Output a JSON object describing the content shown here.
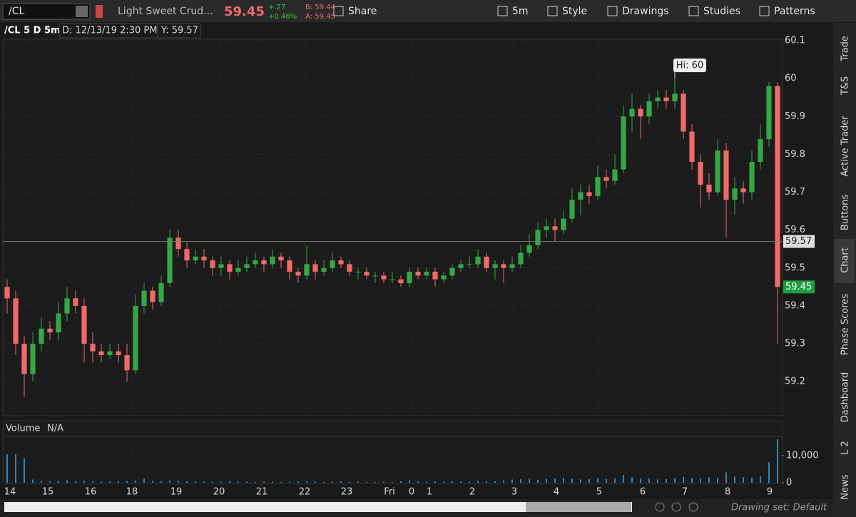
{
  "toolbar": {
    "symbol": "/CL",
    "description": "Light Sweet Crud...",
    "price": "59.45",
    "change": "+.27",
    "change_pct": "+0.46%",
    "bid": "B: 59.44",
    "ask": "A: 59.45",
    "buttons": [
      "Share",
      "5m",
      "Style",
      "Drawings",
      "Studies",
      "Patterns"
    ]
  },
  "header": {
    "symbol": "/CL 5 D 5m",
    "date": "D: 12/13/19 2:30 PM",
    "y": "Y: 59.57"
  },
  "sidebar_tabs": [
    "Trade",
    "T&S",
    "Active Trader",
    "Buttons",
    "Chart",
    "Phase Scores",
    "Dashboard",
    "L 2",
    "News"
  ],
  "footer": {
    "drawing_set": "Drawing set: Default"
  },
  "chart_data": {
    "type": "candlestick",
    "annotation": "Hi: 60",
    "crosshair_y": 59.57,
    "last_price": 59.45,
    "ylim": [
      59.11,
      60.1
    ],
    "yticks": [
      59.2,
      59.3,
      59.4,
      59.5,
      59.6,
      59.7,
      59.8,
      59.9,
      60,
      60.1
    ],
    "xlim": [
      -0.5,
      90.5
    ],
    "xticks": [
      {
        "value": 0.33,
        "label": "14"
      },
      {
        "value": 4.75,
        "label": "15"
      },
      {
        "value": 9.75,
        "label": "16"
      },
      {
        "value": 14.58,
        "label": "18"
      },
      {
        "value": 19.75,
        "label": "19"
      },
      {
        "value": 24.75,
        "label": "20"
      },
      {
        "value": 29.75,
        "label": "21"
      },
      {
        "value": 34.75,
        "label": "22"
      },
      {
        "value": 39.67,
        "label": "23"
      },
      {
        "value": 44.67,
        "label": "Fri"
      },
      {
        "value": 47.25,
        "label": "0"
      },
      {
        "value": 49.33,
        "label": "1"
      },
      {
        "value": 54.33,
        "label": "2"
      },
      {
        "value": 59.25,
        "label": "3"
      },
      {
        "value": 64.17,
        "label": "4"
      },
      {
        "value": 69.17,
        "label": "5"
      },
      {
        "value": 74.25,
        "label": "6"
      },
      {
        "value": 79.17,
        "label": "7"
      },
      {
        "value": 84.17,
        "label": "8"
      },
      {
        "value": 89.08,
        "label": "9"
      }
    ],
    "grid": true,
    "up_color": "#35a845",
    "down_color": "#f06a6a",
    "series": [
      {
        "name": "/CL",
        "values": [
          [
            59.45,
            59.47,
            59.38,
            59.42
          ],
          [
            59.42,
            59.44,
            59.27,
            59.3
          ],
          [
            59.3,
            59.32,
            59.16,
            59.22
          ],
          [
            59.22,
            59.33,
            59.2,
            59.3
          ],
          [
            59.3,
            59.37,
            59.28,
            59.34
          ],
          [
            59.34,
            59.36,
            59.31,
            59.33
          ],
          [
            59.33,
            59.41,
            59.31,
            59.38
          ],
          [
            59.38,
            59.45,
            59.36,
            59.42
          ],
          [
            59.42,
            59.44,
            59.38,
            59.4
          ],
          [
            59.4,
            59.42,
            59.25,
            59.3
          ],
          [
            59.3,
            59.33,
            59.25,
            59.28
          ],
          [
            59.28,
            59.3,
            59.25,
            59.27
          ],
          [
            59.27,
            59.3,
            59.26,
            59.28
          ],
          [
            59.28,
            59.3,
            59.25,
            59.27
          ],
          [
            59.27,
            59.3,
            59.2,
            59.23
          ],
          [
            59.23,
            59.43,
            59.22,
            59.4
          ],
          [
            59.4,
            59.46,
            59.38,
            59.44
          ],
          [
            59.44,
            59.45,
            59.39,
            59.41
          ],
          [
            59.41,
            59.48,
            59.4,
            59.46
          ],
          [
            59.46,
            59.6,
            59.45,
            59.58
          ],
          [
            59.58,
            59.6,
            59.53,
            59.55
          ],
          [
            59.55,
            59.57,
            59.5,
            59.52
          ],
          [
            59.52,
            59.55,
            59.51,
            59.53
          ],
          [
            59.53,
            59.55,
            59.5,
            59.52
          ],
          [
            59.52,
            59.53,
            59.48,
            59.5
          ],
          [
            59.5,
            59.53,
            59.48,
            59.51
          ],
          [
            59.51,
            59.52,
            59.47,
            59.49
          ],
          [
            59.49,
            59.52,
            59.48,
            59.5
          ],
          [
            59.5,
            59.53,
            59.49,
            59.51
          ],
          [
            59.51,
            59.54,
            59.5,
            59.52
          ],
          [
            59.52,
            59.53,
            59.49,
            59.51
          ],
          [
            59.51,
            59.55,
            59.5,
            59.53
          ],
          [
            59.53,
            59.54,
            59.5,
            59.52
          ],
          [
            59.52,
            59.53,
            59.47,
            59.49
          ],
          [
            59.49,
            59.5,
            59.46,
            59.48
          ],
          [
            59.48,
            59.56,
            59.47,
            59.51
          ],
          [
            59.51,
            59.52,
            59.47,
            59.49
          ],
          [
            59.49,
            59.52,
            59.48,
            59.5
          ],
          [
            59.5,
            59.54,
            59.49,
            59.52
          ],
          [
            59.52,
            59.53,
            59.5,
            59.51
          ],
          [
            59.51,
            59.52,
            59.48,
            59.49
          ],
          [
            59.49,
            59.5,
            59.47,
            59.49
          ],
          [
            59.49,
            59.5,
            59.47,
            59.48
          ],
          [
            59.48,
            59.49,
            59.46,
            59.48
          ],
          [
            59.48,
            59.49,
            59.46,
            59.47
          ],
          [
            59.47,
            59.49,
            59.46,
            59.47
          ],
          [
            59.47,
            59.48,
            59.45,
            59.46
          ],
          [
            59.46,
            59.5,
            59.45,
            59.49
          ],
          [
            59.49,
            59.5,
            59.47,
            59.48
          ],
          [
            59.48,
            59.5,
            59.47,
            59.49
          ],
          [
            59.49,
            59.5,
            59.45,
            59.47
          ],
          [
            59.47,
            59.49,
            59.46,
            59.48
          ],
          [
            59.48,
            59.51,
            59.47,
            59.5
          ],
          [
            59.5,
            59.52,
            59.49,
            59.51
          ],
          [
            59.51,
            59.53,
            59.5,
            59.51
          ],
          [
            59.51,
            59.55,
            59.5,
            59.53
          ],
          [
            59.53,
            59.54,
            59.49,
            59.5
          ],
          [
            59.5,
            59.52,
            59.47,
            59.51
          ],
          [
            59.51,
            59.52,
            59.46,
            59.5
          ],
          [
            59.5,
            59.53,
            59.49,
            59.51
          ],
          [
            59.51,
            59.56,
            59.5,
            59.54
          ],
          [
            59.54,
            59.59,
            59.53,
            59.56
          ],
          [
            59.56,
            59.62,
            59.55,
            59.6
          ],
          [
            59.6,
            59.63,
            59.58,
            59.61
          ],
          [
            59.61,
            59.63,
            59.57,
            59.6
          ],
          [
            59.6,
            59.65,
            59.59,
            59.63
          ],
          [
            59.63,
            59.71,
            59.62,
            59.68
          ],
          [
            59.68,
            59.72,
            59.64,
            59.7
          ],
          [
            59.7,
            59.72,
            59.67,
            59.69
          ],
          [
            59.69,
            59.77,
            59.68,
            59.74
          ],
          [
            59.74,
            59.76,
            59.71,
            59.73
          ],
          [
            59.73,
            59.8,
            59.72,
            59.76
          ],
          [
            59.76,
            59.93,
            59.75,
            59.9
          ],
          [
            59.9,
            59.96,
            59.86,
            59.92
          ],
          [
            59.92,
            59.93,
            59.84,
            59.9
          ],
          [
            59.9,
            59.96,
            59.88,
            59.94
          ],
          [
            59.94,
            59.97,
            59.92,
            59.95
          ],
          [
            59.95,
            59.97,
            59.92,
            59.94
          ],
          [
            59.94,
            60.0,
            59.92,
            59.96
          ],
          [
            59.96,
            59.97,
            59.84,
            59.86
          ],
          [
            59.86,
            59.88,
            59.76,
            59.78
          ],
          [
            59.78,
            59.8,
            59.66,
            59.72
          ],
          [
            59.72,
            59.75,
            59.68,
            59.7
          ],
          [
            59.7,
            59.84,
            59.69,
            59.81
          ],
          [
            59.81,
            59.83,
            59.58,
            59.68
          ],
          [
            59.68,
            59.74,
            59.64,
            59.71
          ],
          [
            59.71,
            59.73,
            59.67,
            59.7
          ],
          [
            59.7,
            59.81,
            59.68,
            59.78
          ],
          [
            59.78,
            59.88,
            59.76,
            59.84
          ],
          [
            59.84,
            59.99,
            59.82,
            59.98
          ],
          [
            59.98,
            59.99,
            59.3,
            59.45
          ]
        ]
      }
    ],
    "volume": {
      "title": "Volume",
      "subtitle": "N/A",
      "color": "#2f86c4",
      "ylim": [
        0,
        16500
      ],
      "yticks": [
        0,
        {
          "value": 10000,
          "label": "10,000"
        }
      ],
      "values": [
        10500,
        10500,
        9000,
        1200,
        800,
        600,
        700,
        900,
        600,
        800,
        500,
        400,
        500,
        600,
        700,
        900,
        1500,
        800,
        600,
        900,
        700,
        600,
        500,
        400,
        500,
        400,
        600,
        400,
        500,
        300,
        400,
        500,
        300,
        400,
        500,
        600,
        400,
        300,
        400,
        500,
        300,
        400,
        300,
        300,
        400,
        300,
        600,
        900,
        500,
        400,
        500,
        400,
        600,
        500,
        400,
        700,
        500,
        600,
        900,
        1200,
        1300,
        1500,
        1100,
        1400,
        1600,
        1800,
        1500,
        1200,
        1300,
        1700,
        1400,
        1600,
        2800,
        2000,
        1500,
        1600,
        1200,
        1300,
        1700,
        2200,
        1800,
        1600,
        2000,
        1800,
        3800,
        2300,
        2000,
        1800,
        2400,
        7500,
        16000
      ]
    }
  }
}
